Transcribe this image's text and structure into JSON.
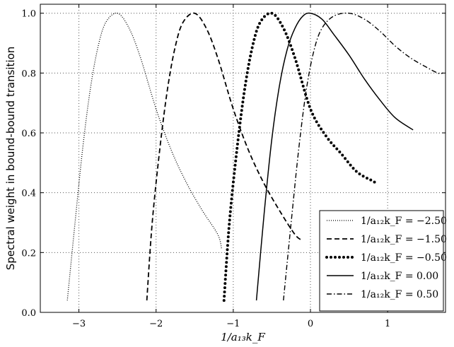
{
  "chart_data": {
    "type": "line",
    "xlabel": "1/a₁₃k_F",
    "ylabel": "Spectral weight in bound-bound transition",
    "xlim": [
      -3.5,
      1.75
    ],
    "ylim": [
      0.0,
      1.03
    ],
    "xticks": [
      {
        "value": -3,
        "label": "−3"
      },
      {
        "value": -2,
        "label": "−2"
      },
      {
        "value": -1,
        "label": "−1"
      },
      {
        "value": 0,
        "label": "0"
      },
      {
        "value": 1,
        "label": "1"
      }
    ],
    "yticks": [
      {
        "value": 0.0,
        "label": "0.0"
      },
      {
        "value": 0.2,
        "label": "0.2"
      },
      {
        "value": 0.4,
        "label": "0.4"
      },
      {
        "value": 0.6,
        "label": "0.6"
      },
      {
        "value": 0.8,
        "label": "0.8"
      },
      {
        "value": 1.0,
        "label": "1.0"
      }
    ],
    "grid": true,
    "legend_position": "lower-right",
    "series": [
      {
        "name": "1/a₁₂k_F = −2.50",
        "style": "dotted",
        "x": [
          -3.15,
          -3.05,
          -2.95,
          -2.85,
          -2.75,
          -2.65,
          -2.5,
          -2.35,
          -2.2,
          -2.0,
          -1.8,
          -1.6,
          -1.4,
          -1.2,
          -1.15
        ],
        "y": [
          0.04,
          0.3,
          0.55,
          0.75,
          0.89,
          0.97,
          1.0,
          0.95,
          0.85,
          0.68,
          0.54,
          0.43,
          0.34,
          0.26,
          0.21
        ]
      },
      {
        "name": "1/a₁₂k_F = −1.50",
        "style": "dashed",
        "x": [
          -2.12,
          -2.05,
          -1.95,
          -1.85,
          -1.75,
          -1.65,
          -1.5,
          -1.35,
          -1.2,
          -1.0,
          -0.8,
          -0.6,
          -0.4,
          -0.2,
          -0.1
        ],
        "y": [
          0.04,
          0.3,
          0.55,
          0.75,
          0.89,
          0.97,
          1.0,
          0.95,
          0.85,
          0.68,
          0.54,
          0.43,
          0.34,
          0.26,
          0.24
        ]
      },
      {
        "name": "1/a₁₂k_F = −0.50",
        "style": "dots",
        "x": [
          -1.12,
          -1.05,
          -0.95,
          -0.85,
          -0.75,
          -0.65,
          -0.5,
          -0.35,
          -0.2,
          0.0,
          0.2,
          0.4,
          0.6,
          0.8,
          0.87
        ],
        "y": [
          0.04,
          0.3,
          0.55,
          0.75,
          0.89,
          0.97,
          1.0,
          0.95,
          0.85,
          0.68,
          0.59,
          0.53,
          0.47,
          0.44,
          0.43
        ]
      },
      {
        "name": "1/a₁₂k_F =    0.00",
        "style": "solid",
        "x": [
          -0.7,
          -0.6,
          -0.5,
          -0.4,
          -0.3,
          -0.2,
          -0.1,
          0.0,
          0.15,
          0.3,
          0.5,
          0.7,
          0.9,
          1.1,
          1.33
        ],
        "y": [
          0.04,
          0.33,
          0.58,
          0.76,
          0.88,
          0.95,
          0.99,
          1.0,
          0.98,
          0.93,
          0.86,
          0.78,
          0.71,
          0.65,
          0.61
        ]
      },
      {
        "name": "1/a₁₂k_F =    0.50",
        "style": "dashdot",
        "x": [
          -0.35,
          -0.25,
          -0.15,
          -0.05,
          0.05,
          0.15,
          0.3,
          0.5,
          0.7,
          0.9,
          1.1,
          1.3,
          1.5,
          1.65,
          1.72
        ],
        "y": [
          0.04,
          0.3,
          0.55,
          0.75,
          0.88,
          0.95,
          0.99,
          1.0,
          0.98,
          0.94,
          0.89,
          0.85,
          0.82,
          0.8,
          0.8
        ]
      }
    ]
  }
}
